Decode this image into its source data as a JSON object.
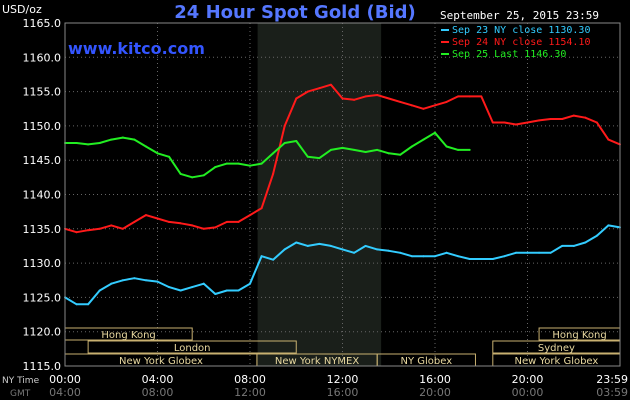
{
  "chart_data": {
    "type": "line",
    "title": "24 Hour Spot Gold (Bid)",
    "watermark": "www.kitco.com",
    "timestamp": "September 25, 2015 23:59",
    "ylabel": "USD/oz",
    "ylim": [
      1115,
      1165
    ],
    "yticks": [
      "1165.0",
      "1160.0",
      "1155.0",
      "1150.0",
      "1145.0",
      "1140.0",
      "1135.0",
      "1130.0",
      "1125.0",
      "1120.0",
      "1115.0"
    ],
    "x_label_ny": "NY Time",
    "x_label_gmt": "GMT",
    "xticks_ny": [
      "00:00",
      "04:00",
      "08:00",
      "12:00",
      "16:00",
      "20:00",
      "23:59"
    ],
    "xticks_gmt": [
      "04:00",
      "08:00",
      "12:00",
      "16:00",
      "20:00",
      "00:00",
      "03:59"
    ],
    "shaded_region_hours": [
      8.33,
      13.67
    ],
    "x_hours_range": [
      0,
      24
    ],
    "sessions": [
      {
        "row": 0,
        "name": "Hong Kong",
        "start": 0,
        "end": 5.5
      },
      {
        "row": 0,
        "name": "Hong Kong",
        "start": 20.5,
        "end": 24
      },
      {
        "row": 1,
        "name": "London",
        "start": 1,
        "end": 10
      },
      {
        "row": 1,
        "name": "Sydney",
        "start": 18.5,
        "end": 24
      },
      {
        "row": 2,
        "name": "New York Globex",
        "start": 0,
        "end": 8.3
      },
      {
        "row": 2,
        "name": "New York NYMEX",
        "start": 8.3,
        "end": 13.5
      },
      {
        "row": 2,
        "name": "NY Globex",
        "start": 13.5,
        "end": 17.75
      },
      {
        "row": 2,
        "name": "New York Globex",
        "start": 18.5,
        "end": 24
      }
    ],
    "series": [
      {
        "name": "Sep 23 NY close 1130.30",
        "color": "#33ccff",
        "x": [
          0,
          0.5,
          1,
          1.5,
          2,
          2.5,
          3,
          3.5,
          4,
          4.5,
          5,
          5.5,
          6,
          6.5,
          7,
          7.5,
          8,
          8.5,
          9,
          9.5,
          10,
          10.5,
          11,
          11.5,
          12,
          12.5,
          13,
          13.5,
          14,
          14.5,
          15,
          15.5,
          16,
          16.5,
          17,
          17.5,
          18,
          18.5,
          19,
          19.5,
          20,
          20.5,
          21,
          21.5,
          22,
          22.5,
          23,
          23.5,
          24
        ],
        "values": [
          1125,
          1124,
          1124,
          1126,
          1127,
          1127.5,
          1127.8,
          1127.5,
          1127.3,
          1126.5,
          1126,
          1126.5,
          1127,
          1125.5,
          1126,
          1126,
          1127,
          1131,
          1130.5,
          1132,
          1133,
          1132.5,
          1132.8,
          1132.5,
          1132,
          1131.5,
          1132.5,
          1132,
          1131.8,
          1131.5,
          1131,
          1131,
          1131,
          1131.5,
          1131,
          1130.6,
          1130.6,
          1130.6,
          1131,
          1131.5,
          1131.5,
          1131.5,
          1131.5,
          1132.5,
          1132.5,
          1133,
          1134,
          1135.5,
          1135.2
        ]
      },
      {
        "name": "Sep 24 NY close 1154.10",
        "color": "#ff1a1a",
        "x": [
          0,
          0.5,
          1,
          1.5,
          2,
          2.5,
          3,
          3.5,
          4,
          4.5,
          5,
          5.5,
          6,
          6.5,
          7,
          7.5,
          8,
          8.5,
          9,
          9.5,
          10,
          10.5,
          11,
          11.5,
          12,
          12.5,
          13,
          13.5,
          14,
          14.5,
          15,
          15.5,
          16,
          16.5,
          17,
          17.5,
          18,
          18.5,
          19,
          19.5,
          20,
          20.5,
          21,
          21.5,
          22,
          22.5,
          23,
          23.5,
          24
        ],
        "values": [
          1135,
          1134.5,
          1134.8,
          1135,
          1135.5,
          1135,
          1136,
          1137,
          1136.5,
          1136,
          1135.8,
          1135.5,
          1135,
          1135.2,
          1136,
          1136,
          1137,
          1138,
          1143,
          1150,
          1154,
          1155,
          1155.5,
          1156,
          1154,
          1153.8,
          1154.3,
          1154.5,
          1154,
          1153.5,
          1153,
          1152.5,
          1153,
          1153.5,
          1154.3,
          1154.3,
          1154.3,
          1150.5,
          1150.5,
          1150.2,
          1150.5,
          1150.8,
          1151,
          1151,
          1151.5,
          1151.2,
          1150.5,
          1148,
          1147.3
        ]
      },
      {
        "name": "Sep 25 Last 1146.30",
        "color": "#22ee22",
        "x": [
          0,
          0.5,
          1,
          1.5,
          2,
          2.5,
          3,
          3.5,
          4,
          4.5,
          5,
          5.5,
          6,
          6.5,
          7,
          7.5,
          8,
          8.5,
          9,
          9.5,
          10,
          10.5,
          11,
          11.5,
          12,
          12.5,
          13,
          13.5,
          14,
          14.5,
          15,
          15.5,
          16,
          16.5,
          17,
          17.5
        ],
        "values": [
          1147.5,
          1147.5,
          1147.3,
          1147.5,
          1148,
          1148.3,
          1148,
          1147,
          1146,
          1145.5,
          1143,
          1142.5,
          1142.8,
          1144,
          1144.5,
          1144.5,
          1144.2,
          1144.5,
          1146,
          1147.5,
          1147.8,
          1145.5,
          1145.3,
          1146.5,
          1146.8,
          1146.5,
          1146.2,
          1146.5,
          1146,
          1145.8,
          1147,
          1148,
          1149,
          1147,
          1146.5,
          1146.5
        ]
      }
    ]
  }
}
